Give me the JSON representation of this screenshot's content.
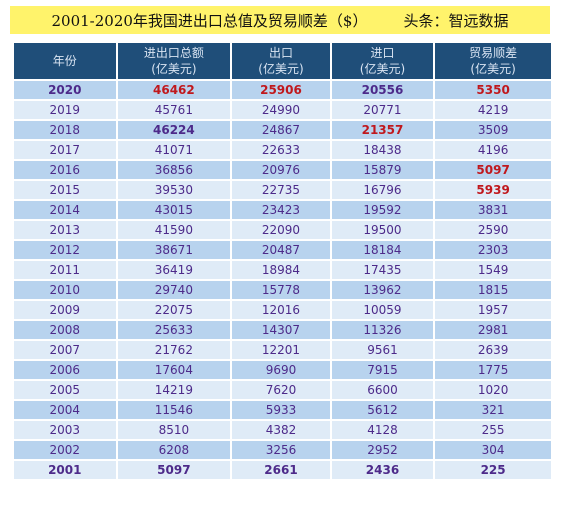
{
  "title": {
    "main": "2001-2020年我国进出口总值及贸易顺差（$）",
    "source": "头条：智远数据"
  },
  "columns": [
    {
      "line1": "年份",
      "line2": ""
    },
    {
      "line1": "进出口总额",
      "line2": "(亿美元)"
    },
    {
      "line1": "出口",
      "line2": "(亿美元)"
    },
    {
      "line1": "进口",
      "line2": "(亿美元)"
    },
    {
      "line1": "贸易顺差",
      "line2": "(亿美元)"
    }
  ],
  "rows": [
    {
      "year": "2020",
      "total": "46462",
      "export": "25906",
      "import": "20556",
      "surplus": "5350"
    },
    {
      "year": "2019",
      "total": "45761",
      "export": "24990",
      "import": "20771",
      "surplus": "4219"
    },
    {
      "year": "2018",
      "total": "46224",
      "export": "24867",
      "import": "21357",
      "surplus": "3509"
    },
    {
      "year": "2017",
      "total": "41071",
      "export": "22633",
      "import": "18438",
      "surplus": "4196"
    },
    {
      "year": "2016",
      "total": "36856",
      "export": "20976",
      "import": "15879",
      "surplus": "5097"
    },
    {
      "year": "2015",
      "total": "39530",
      "export": "22735",
      "import": "16796",
      "surplus": "5939"
    },
    {
      "year": "2014",
      "total": "43015",
      "export": "23423",
      "import": "19592",
      "surplus": "3831"
    },
    {
      "year": "2013",
      "total": "41590",
      "export": "22090",
      "import": "19500",
      "surplus": "2590"
    },
    {
      "year": "2012",
      "total": "38671",
      "export": "20487",
      "import": "18184",
      "surplus": "2303"
    },
    {
      "year": "2011",
      "total": "36419",
      "export": "18984",
      "import": "17435",
      "surplus": "1549"
    },
    {
      "year": "2010",
      "total": "29740",
      "export": "15778",
      "import": "13962",
      "surplus": "1815"
    },
    {
      "year": "2009",
      "total": "22075",
      "export": "12016",
      "import": "10059",
      "surplus": "1957"
    },
    {
      "year": "2008",
      "total": "25633",
      "export": "14307",
      "import": "11326",
      "surplus": "2981"
    },
    {
      "year": "2007",
      "total": "21762",
      "export": "12201",
      "import": "9561",
      "surplus": "2639"
    },
    {
      "year": "2006",
      "total": "17604",
      "export": "9690",
      "import": "7915",
      "surplus": "1775"
    },
    {
      "year": "2005",
      "total": "14219",
      "export": "7620",
      "import": "6600",
      "surplus": "1020"
    },
    {
      "year": "2004",
      "total": "11546",
      "export": "5933",
      "import": "5612",
      "surplus": "321"
    },
    {
      "year": "2003",
      "total": "8510",
      "export": "4382",
      "import": "4128",
      "surplus": "255"
    },
    {
      "year": "2002",
      "total": "6208",
      "export": "3256",
      "import": "2952",
      "surplus": "304"
    },
    {
      "year": "2001",
      "total": "5097",
      "export": "2661",
      "import": "2436",
      "surplus": "225"
    }
  ],
  "colors": {
    "header_bg": "#1f4e79",
    "title_bg": "#fff36b",
    "row_odd": "#b8d3ee",
    "row_even": "#dfebf7",
    "text": "#4d2a8a",
    "highlight": "#c0181d"
  }
}
